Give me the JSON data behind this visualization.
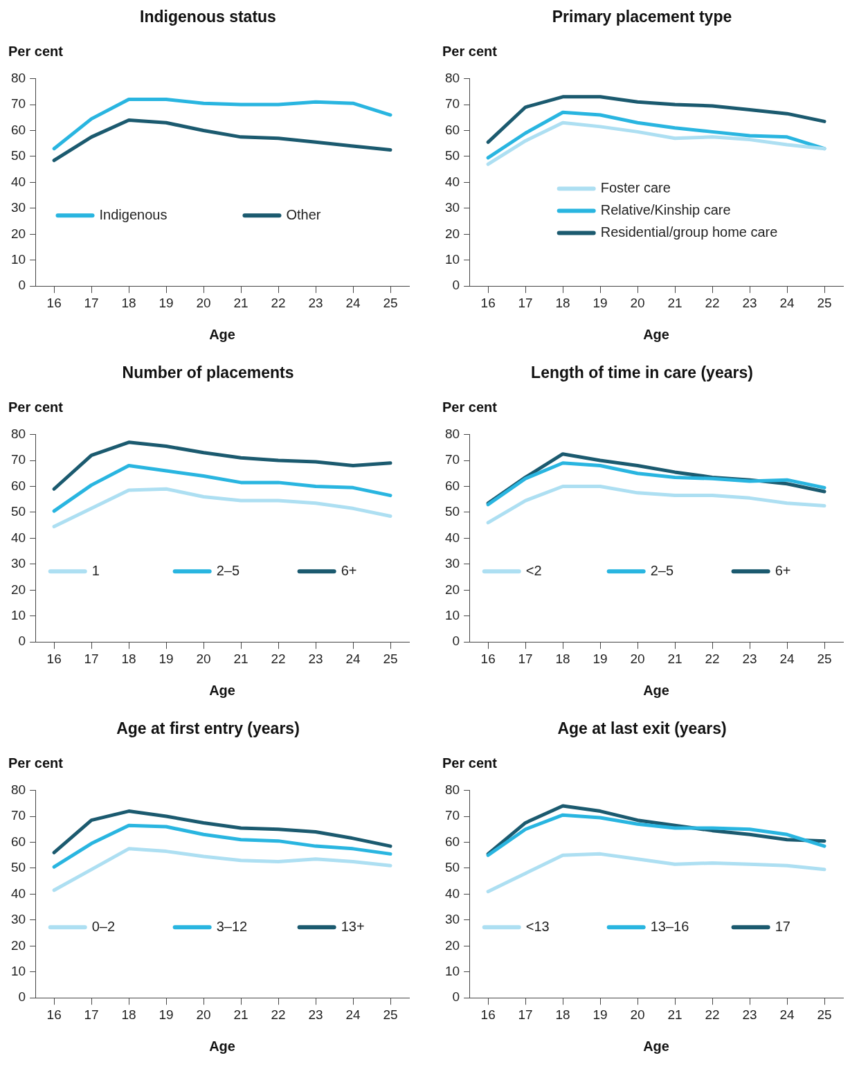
{
  "chart_data": [
    {
      "type": "line",
      "title": "Indigenous status",
      "ylabel": "Per cent",
      "xlabel": "Age",
      "categories": [
        "16",
        "17",
        "18",
        "19",
        "20",
        "21",
        "22",
        "23",
        "24",
        "25"
      ],
      "ylim": [
        0,
        80
      ],
      "yticks": [
        0,
        10,
        20,
        30,
        40,
        50,
        60,
        70,
        80
      ],
      "legend": "center",
      "marker": "none",
      "series": [
        {
          "name": "Indigenous",
          "color": "#29b5e0",
          "values": [
            53,
            64.5,
            72,
            72,
            70.5,
            70,
            70,
            71,
            70.5,
            66
          ]
        },
        {
          "name": "Other",
          "color": "#1b5a6f",
          "values": [
            48.5,
            57.5,
            64,
            63,
            60,
            57.5,
            57,
            55.5,
            54,
            52.5
          ]
        }
      ]
    },
    {
      "type": "line",
      "title": "Primary placement type",
      "ylabel": "Per cent",
      "xlabel": "Age",
      "categories": [
        "16",
        "17",
        "18",
        "19",
        "20",
        "21",
        "22",
        "23",
        "24",
        "25"
      ],
      "ylim": [
        0,
        80
      ],
      "yticks": [
        0,
        10,
        20,
        30,
        40,
        50,
        60,
        70,
        80
      ],
      "legend": "center",
      "marker": "none",
      "series": [
        {
          "name": "Foster care",
          "color": "#addff2",
          "values": [
            47,
            56,
            63,
            61.5,
            59.5,
            57,
            57.5,
            56.5,
            54.5,
            53
          ]
        },
        {
          "name": "Relative/Kinship care",
          "color": "#29b5e0",
          "values": [
            49.5,
            59,
            67,
            66,
            63,
            61,
            59.5,
            58,
            57.5,
            53
          ]
        },
        {
          "name": "Residential/group home care",
          "color": "#1b5a6f",
          "values": [
            55.5,
            69,
            73,
            73,
            71,
            70,
            69.5,
            68,
            66.5,
            63.5
          ]
        }
      ]
    },
    {
      "type": "line",
      "title": "Number of placements",
      "ylabel": "Per cent",
      "xlabel": "Age",
      "categories": [
        "16",
        "17",
        "18",
        "19",
        "20",
        "21",
        "22",
        "23",
        "24",
        "25"
      ],
      "ylim": [
        0,
        80
      ],
      "yticks": [
        0,
        10,
        20,
        30,
        40,
        50,
        60,
        70,
        80
      ],
      "legend": "center",
      "marker": "none",
      "series": [
        {
          "name": "1",
          "color": "#addff2",
          "values": [
            44.5,
            51.5,
            58.5,
            59,
            56,
            54.5,
            54.5,
            53.5,
            51.5,
            48.5
          ]
        },
        {
          "name": "2–5",
          "color": "#29b5e0",
          "values": [
            50.5,
            60.5,
            68,
            66,
            64,
            61.5,
            61.5,
            60,
            59.5,
            56.5
          ]
        },
        {
          "name": "6+",
          "color": "#1b5a6f",
          "values": [
            59,
            72,
            77,
            75.5,
            73,
            71,
            70,
            69.5,
            68,
            69
          ]
        }
      ]
    },
    {
      "type": "line",
      "title": "Length of time in care (years)",
      "ylabel": "Per cent",
      "xlabel": "Age",
      "categories": [
        "16",
        "17",
        "18",
        "19",
        "20",
        "21",
        "22",
        "23",
        "24",
        "25"
      ],
      "ylim": [
        0,
        80
      ],
      "yticks": [
        0,
        10,
        20,
        30,
        40,
        50,
        60,
        70,
        80
      ],
      "legend": "center",
      "marker": "none",
      "series": [
        {
          "name": "<2",
          "color": "#addff2",
          "values": [
            46,
            54.5,
            60,
            60,
            57.5,
            56.5,
            56.5,
            55.5,
            53.5,
            52.5
          ]
        },
        {
          "name": "2–5",
          "color": "#29b5e0",
          "values": [
            53,
            63,
            69,
            68,
            65,
            63.5,
            63,
            62,
            62.5,
            59.5
          ]
        },
        {
          "name": "6+",
          "color": "#1b5a6f",
          "values": [
            53.5,
            63.5,
            72.5,
            70,
            68,
            65.5,
            63.5,
            62.5,
            61,
            58
          ]
        }
      ]
    },
    {
      "type": "line",
      "title": "Age at first entry (years)",
      "ylabel": "Per cent",
      "xlabel": "Age",
      "categories": [
        "16",
        "17",
        "18",
        "19",
        "20",
        "21",
        "22",
        "23",
        "24",
        "25"
      ],
      "ylim": [
        0,
        80
      ],
      "yticks": [
        0,
        10,
        20,
        30,
        40,
        50,
        60,
        70,
        80
      ],
      "legend": "center",
      "marker": "none",
      "series": [
        {
          "name": "0–2",
          "color": "#addff2",
          "values": [
            41.5,
            49.5,
            57.5,
            56.5,
            54.5,
            53,
            52.5,
            53.5,
            52.5,
            51
          ]
        },
        {
          "name": "3–12",
          "color": "#29b5e0",
          "values": [
            50.5,
            59.5,
            66.5,
            66,
            63,
            61,
            60.5,
            58.5,
            57.5,
            55.5
          ]
        },
        {
          "name": "13+",
          "color": "#1b5a6f",
          "values": [
            56,
            68.5,
            72,
            70,
            67.5,
            65.5,
            65,
            64,
            61.5,
            58.5
          ]
        }
      ]
    },
    {
      "type": "line",
      "title": "Age at last exit (years)",
      "ylabel": "Per cent",
      "xlabel": "Age",
      "categories": [
        "16",
        "17",
        "18",
        "19",
        "20",
        "21",
        "22",
        "23",
        "24",
        "25"
      ],
      "ylim": [
        0,
        80
      ],
      "yticks": [
        0,
        10,
        20,
        30,
        40,
        50,
        60,
        70,
        80
      ],
      "legend": "center",
      "marker": "none",
      "series": [
        {
          "name": "<13",
          "color": "#addff2",
          "values": [
            41,
            48,
            55,
            55.5,
            53.5,
            51.5,
            52,
            51.5,
            51,
            49.5
          ]
        },
        {
          "name": "13–16",
          "color": "#29b5e0",
          "values": [
            55,
            65,
            70.5,
            69.5,
            67,
            65.5,
            65.5,
            65,
            63,
            58.5
          ]
        },
        {
          "name": "17",
          "color": "#1b5a6f",
          "values": [
            55.5,
            67.5,
            74,
            72,
            68.5,
            66.5,
            64.5,
            63,
            61,
            60.5
          ]
        }
      ]
    }
  ]
}
